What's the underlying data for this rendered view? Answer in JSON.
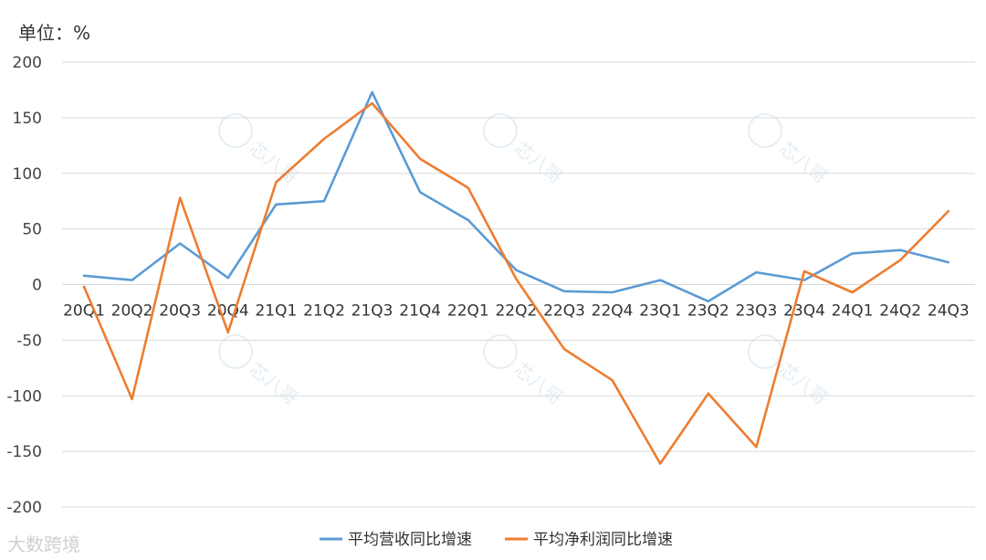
{
  "unit_label": "单位：%",
  "watermark": "芯八哥",
  "footer_logo": "大数跨境",
  "chart_data": {
    "type": "line",
    "categories": [
      "20Q1",
      "20Q2",
      "20Q3",
      "20Q4",
      "21Q1",
      "21Q2",
      "21Q3",
      "21Q4",
      "22Q1",
      "22Q2",
      "22Q3",
      "22Q4",
      "23Q1",
      "23Q2",
      "23Q3",
      "23Q4",
      "24Q1",
      "24Q2",
      "24Q3"
    ],
    "ylim": [
      -200,
      200
    ],
    "yticks": [
      200,
      150,
      100,
      50,
      0,
      -50,
      -100,
      -150,
      -200
    ],
    "grid": true,
    "legend_position": "bottom",
    "series": [
      {
        "name": "平均营收同比增速",
        "color": "#5b9bd5",
        "values": [
          8,
          4,
          37,
          6,
          72,
          75,
          173,
          83,
          58,
          13,
          -6,
          -7,
          4,
          -15,
          11,
          4,
          28,
          31,
          20
        ]
      },
      {
        "name": "平均净利润同比增速",
        "color": "#ed7d31",
        "values": [
          -2,
          -103,
          78,
          -43,
          92,
          131,
          163,
          113,
          87,
          5,
          -58,
          -86,
          -161,
          -98,
          -146,
          12,
          -7,
          22,
          66
        ]
      }
    ]
  }
}
